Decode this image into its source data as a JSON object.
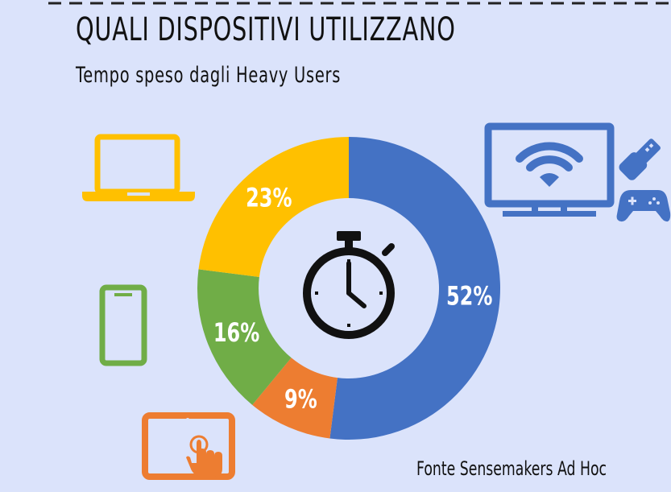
{
  "header": {
    "title": "QUALI DISPOSITIVI UTILIZZANO",
    "subtitle": "Tempo speso dagli Heavy Users"
  },
  "footer": {
    "source": "Fonte Sensemakers Ad Hoc"
  },
  "chart_data": {
    "type": "pie",
    "title": "QUALI DISPOSITIVI UTILIZZANO",
    "subtitle": "Tempo speso dagli Heavy Users",
    "categories": [
      "TV",
      "Tablet",
      "Smartphone",
      "Laptop"
    ],
    "values": [
      52,
      9,
      16,
      23
    ],
    "labels": [
      "52%",
      "9%",
      "16%",
      "23%"
    ],
    "colors": [
      "#4472c4",
      "#ed7d31",
      "#70ad47",
      "#ffc000"
    ],
    "legend": "icons"
  },
  "icons": {
    "laptop": "laptop-icon",
    "smartphone": "smartphone-icon",
    "tablet": "tablet-touch-icon",
    "tv": "smart-tv-wifi-icon",
    "usb": "usb-stick-icon",
    "gamepad": "gamepad-icon",
    "center": "stopwatch-icon"
  }
}
